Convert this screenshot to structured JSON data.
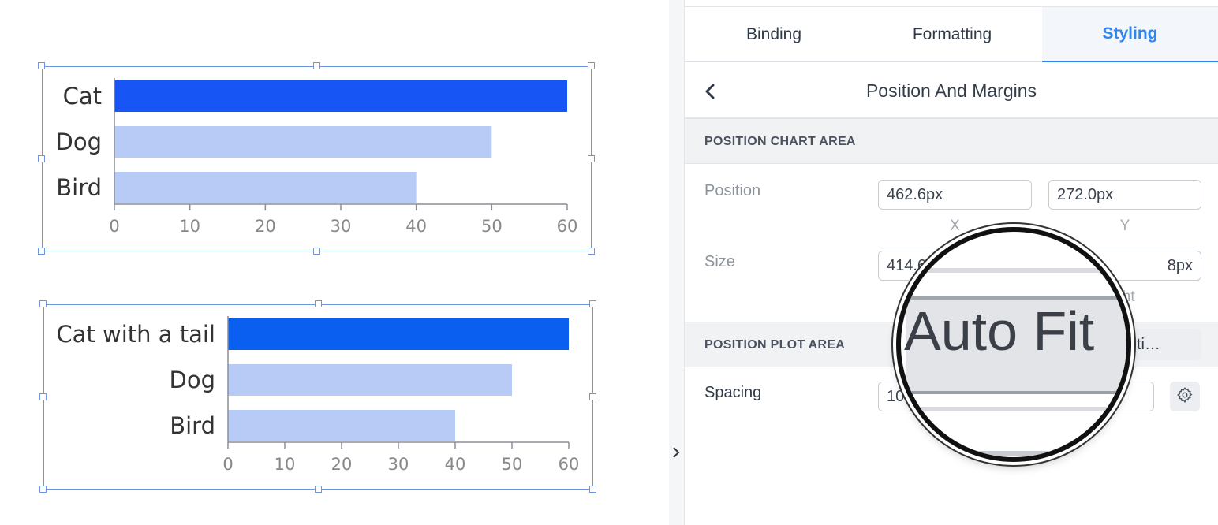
{
  "charts": [
    {
      "chart_data": {
        "type": "bar",
        "orientation": "horizontal",
        "categories": [
          "Cat",
          "Dog",
          "Bird"
        ],
        "values": [
          60,
          50,
          40
        ],
        "xlim": [
          0,
          60
        ],
        "ticks": [
          "0",
          "10",
          "20",
          "30",
          "40",
          "50",
          "60"
        ],
        "colors": [
          "#1855f5",
          "#b8cbf7",
          "#b8cbf7"
        ]
      }
    },
    {
      "chart_data": {
        "type": "bar",
        "orientation": "horizontal",
        "categories": [
          "Cat with a tail",
          "Dog",
          "Bird"
        ],
        "values": [
          60,
          50,
          40
        ],
        "xlim": [
          0,
          60
        ],
        "ticks": [
          "0",
          "10",
          "20",
          "30",
          "40",
          "50",
          "60"
        ],
        "colors": [
          "#0a5ef0",
          "#b8cbf7",
          "#b8cbf7"
        ]
      }
    }
  ],
  "sidebar_toggle_icon": "chevron-right-icon",
  "tabs": [
    {
      "label": "Binding",
      "active": false
    },
    {
      "label": "Formatting",
      "active": false
    },
    {
      "label": "Styling",
      "active": true
    }
  ],
  "header": {
    "title": "Position And Margins",
    "back_icon": "chevron-left-icon"
  },
  "section_chart_area": {
    "title": "POSITION CHART AREA",
    "position_label": "Position",
    "x_value": "462.6px",
    "y_value": "272.0px",
    "x_label": "X",
    "y_label": "Y",
    "size_label": "Size",
    "width_value": "414.6",
    "height_value": "8px",
    "height_sublabel": "ight"
  },
  "section_plot_area": {
    "title": "POSITION PLOT AREA",
    "position_button": "Positi…",
    "spacing_label": "Spacing",
    "spacing_value": "10",
    "settings_icon": "gear-icon"
  },
  "magnifier": {
    "text": "Auto Fit"
  }
}
